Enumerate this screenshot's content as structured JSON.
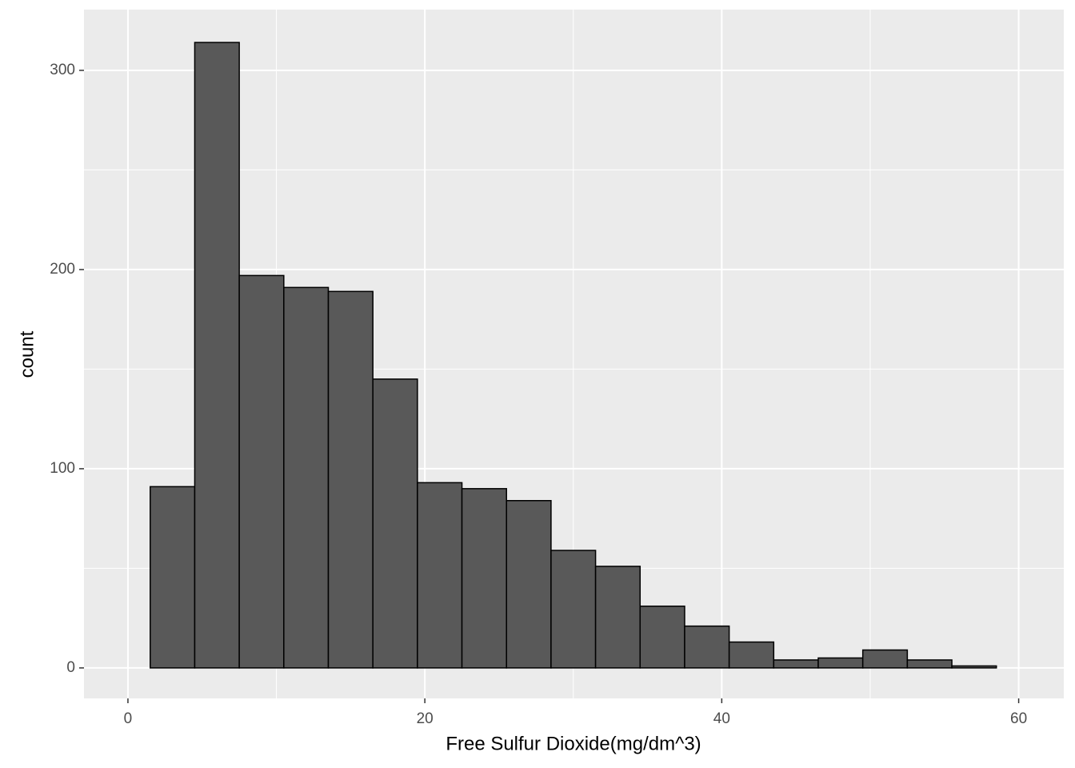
{
  "chart_data": {
    "type": "histogram",
    "x_label": "Free Sulfur Dioxide(mg/dm^3)",
    "y_label": "count",
    "bins": [
      1.5,
      4.5,
      7.5,
      10.5,
      13.5,
      16.5,
      19.5,
      22.5,
      25.5,
      28.5,
      31.5,
      34.5,
      37.5,
      40.5,
      43.5,
      46.5,
      49.5,
      52.5,
      55.5,
      58.5
    ],
    "values": [
      91,
      314,
      197,
      191,
      189,
      145,
      93,
      90,
      84,
      59,
      51,
      31,
      21,
      13,
      4,
      5,
      9,
      4,
      1
    ],
    "color": "#595959",
    "edge_color": "#000000",
    "xlim": [
      -2.96,
      63.04
    ],
    "ylim": [
      -15.3,
      330.5
    ],
    "xticks": [
      0,
      20,
      40,
      60
    ],
    "yticks": [
      0,
      100,
      200,
      300
    ],
    "grid": true,
    "minor_grid": true
  }
}
